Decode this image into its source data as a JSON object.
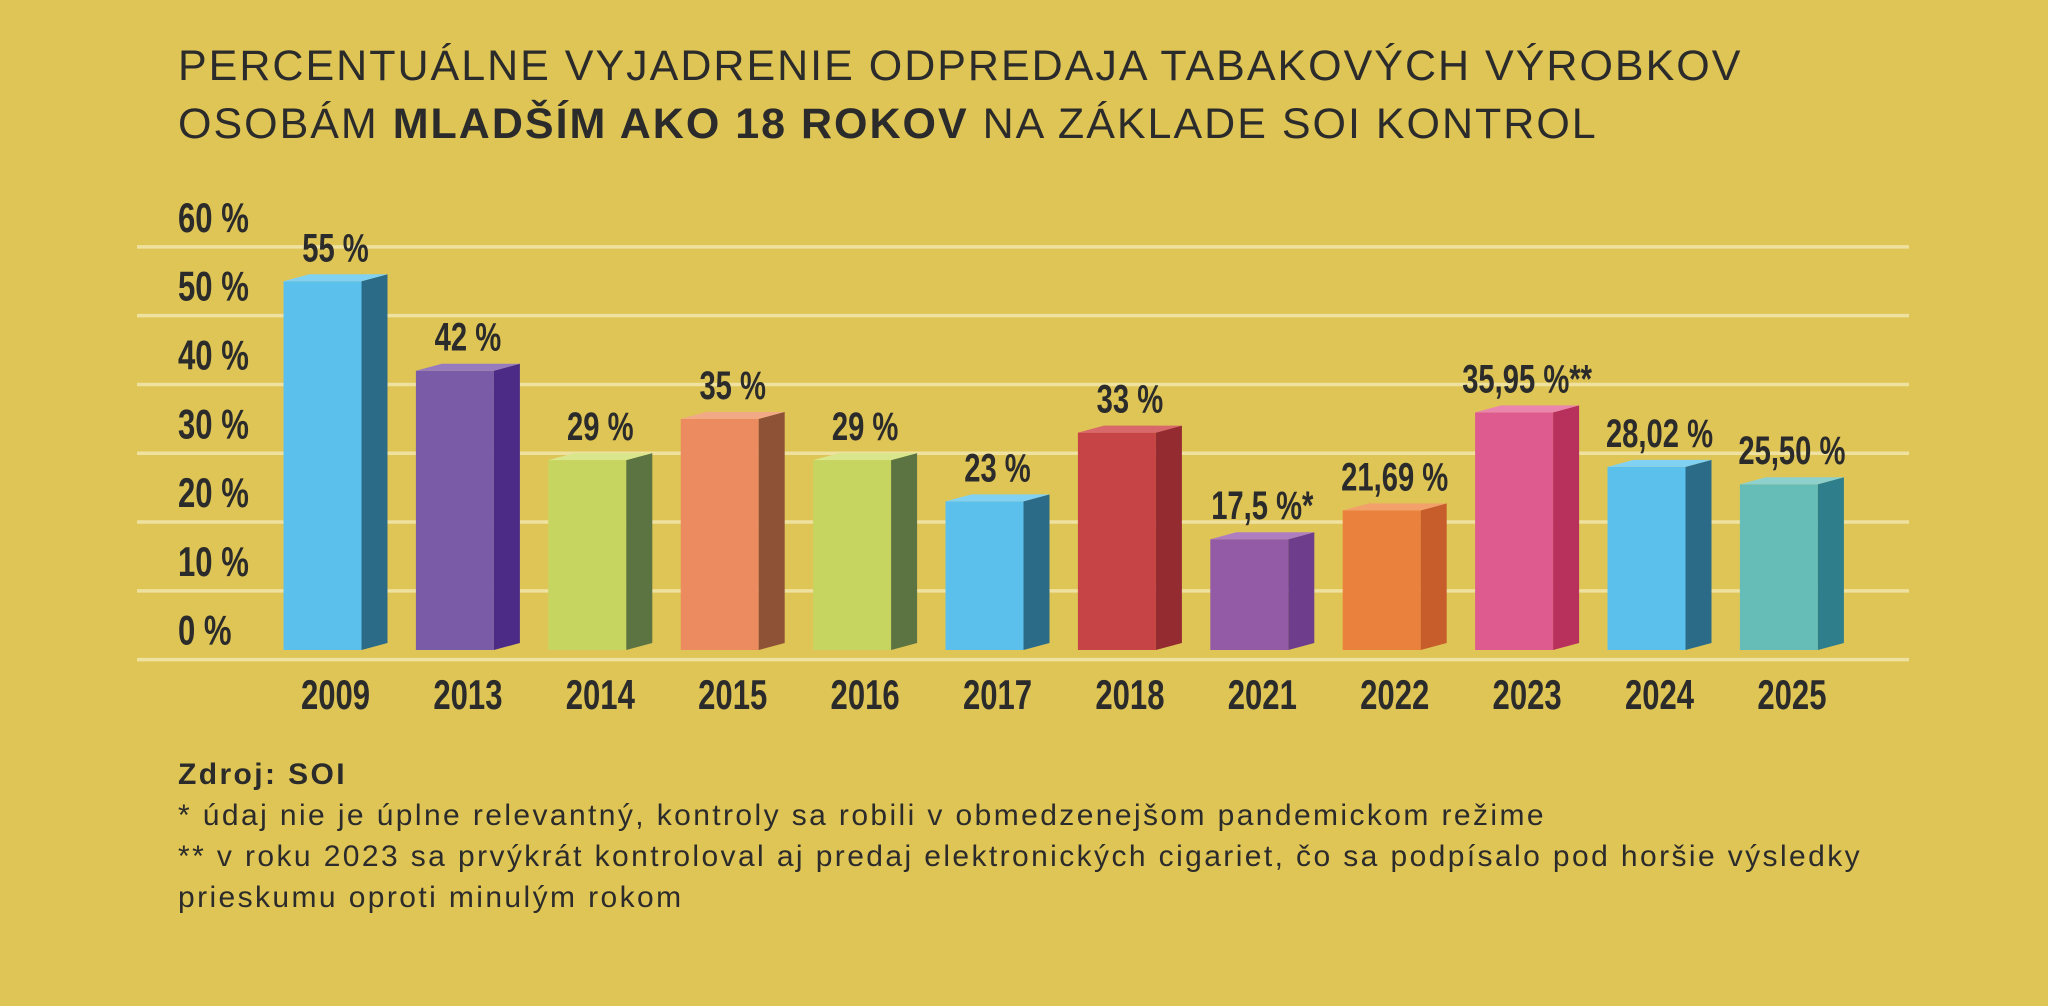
{
  "page": {
    "background": "#DFC555",
    "text_color": "#2B2B2B",
    "gridline_color": "#EFE1A0"
  },
  "chart_data": {
    "type": "bar",
    "bar_style": "3d",
    "title": {
      "line_1": "PERCENTUÁLNE VYJADRENIE ODPREDAJA TABAKOVÝCH VÝROBKOV",
      "line_2_before": "OSOBÁM",
      "line_2_emphasis": "MLADŠÍM AKO 18 ROKOV",
      "line_2_after": "NA ZÁKLADE SOI KONTROL"
    },
    "categories": [
      "2009",
      "2013",
      "2014",
      "2015",
      "2016",
      "2017",
      "2018",
      "2021",
      "2022",
      "2023",
      "2024",
      "2025"
    ],
    "values": [
      55,
      42,
      29,
      35,
      29,
      23,
      33,
      17.5,
      21.69,
      35.95,
      28.02,
      25.5
    ],
    "data_labels": [
      "55 %",
      "42 %",
      "29 %",
      "35 %",
      "29 %",
      "23 %",
      "33 %",
      "17,5 %*",
      "21,69 %",
      "35,95 %**",
      "28,02 %",
      "25,50 %"
    ],
    "ylim": [
      0,
      60
    ],
    "yticks": [
      0,
      10,
      20,
      30,
      40,
      50,
      60
    ],
    "ytick_labels": [
      "0 %",
      "10 %",
      "20 %",
      "30 %",
      "40 %",
      "50 %",
      "60 %"
    ],
    "grid": true,
    "bar_colors": [
      {
        "front": "#5BC1EC",
        "side": "#2C6B88",
        "top": "#80D1F2"
      },
      {
        "front": "#7A5BA8",
        "side": "#4C2B86",
        "top": "#967BBF"
      },
      {
        "front": "#C5D55F",
        "side": "#5B7441",
        "top": "#DAE68C"
      },
      {
        "front": "#EB8B5F",
        "side": "#8E5337",
        "top": "#F2AA86"
      },
      {
        "front": "#C5D55F",
        "side": "#5B7441",
        "top": "#DAE68C"
      },
      {
        "front": "#5BC1EC",
        "side": "#2C6B88",
        "top": "#80D1F2"
      },
      {
        "front": "#C64446",
        "side": "#932B30",
        "top": "#D8686A"
      },
      {
        "front": "#935AA6",
        "side": "#6E3E8C",
        "top": "#AE7EC1"
      },
      {
        "front": "#EA823E",
        "side": "#C75D2B",
        "top": "#F2A16B"
      },
      {
        "front": "#DD5B8F",
        "side": "#B8305C",
        "top": "#EA86AE"
      },
      {
        "front": "#5BC1EC",
        "side": "#2C6B88",
        "top": "#80D1F2"
      },
      {
        "front": "#66BDB7",
        "side": "#2E7F8B",
        "top": "#8ED1CC"
      }
    ]
  },
  "footer": {
    "source": "Zdroj: SOI",
    "note_1": "* údaj nie je úplne relevantný, kontroly sa robili v obmedzenejšom pandemickom režime",
    "note_2": [
      "** v roku 2023 sa prvýkrát kontroloval aj predaj elektronických cigariet, čo sa podpísalo pod horšie výsledky",
      "prieskumu oproti minulým rokom"
    ]
  }
}
